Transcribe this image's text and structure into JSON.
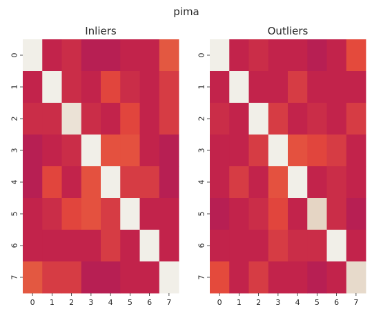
{
  "figure": {
    "suptitle": "pima"
  },
  "palette": [
    "#f1efe8",
    "#e0cab5",
    "#f0c9b0",
    "#e35b42",
    "#e4473b",
    "#d43b45",
    "#c3234a",
    "#b51e54"
  ],
  "chart_data": [
    {
      "type": "heatmap",
      "title": "Inliers",
      "xlabel": "",
      "ylabel": "",
      "x_ticks": [
        "0",
        "1",
        "2",
        "3",
        "4",
        "5",
        "6",
        "7"
      ],
      "y_ticks": [
        "0",
        "1",
        "2",
        "3",
        "4",
        "5",
        "6",
        "7"
      ],
      "colorbar": false,
      "values": [
        [
          1.0,
          0.13,
          0.2,
          0.02,
          0.02,
          0.13,
          0.13,
          0.55
        ],
        [
          0.13,
          1.0,
          0.2,
          0.13,
          0.4,
          0.2,
          0.13,
          0.3
        ],
        [
          0.2,
          0.2,
          0.95,
          0.2,
          0.13,
          0.4,
          0.13,
          0.3
        ],
        [
          0.02,
          0.13,
          0.2,
          1.0,
          0.5,
          0.5,
          0.13,
          0.02
        ],
        [
          0.02,
          0.4,
          0.13,
          0.5,
          1.0,
          0.3,
          0.3,
          0.02
        ],
        [
          0.13,
          0.2,
          0.4,
          0.5,
          0.3,
          1.0,
          0.13,
          0.13
        ],
        [
          0.13,
          0.13,
          0.13,
          0.13,
          0.3,
          0.13,
          1.0,
          0.13
        ],
        [
          0.55,
          0.3,
          0.3,
          0.02,
          0.02,
          0.13,
          0.13,
          1.0
        ]
      ]
    },
    {
      "type": "heatmap",
      "title": "Outliers",
      "xlabel": "",
      "ylabel": "",
      "x_ticks": [
        "0",
        "1",
        "2",
        "3",
        "4",
        "5",
        "6",
        "7"
      ],
      "y_ticks": [
        "0",
        "1",
        "2",
        "3",
        "4",
        "5",
        "6",
        "7"
      ],
      "colorbar": false,
      "values": [
        [
          1.0,
          0.13,
          0.2,
          0.13,
          0.13,
          0.02,
          0.13,
          0.45
        ],
        [
          0.13,
          1.0,
          0.13,
          0.13,
          0.3,
          0.13,
          0.13,
          0.13
        ],
        [
          0.2,
          0.13,
          1.0,
          0.3,
          0.13,
          0.2,
          0.13,
          0.3
        ],
        [
          0.13,
          0.13,
          0.3,
          1.0,
          0.5,
          0.4,
          0.3,
          0.13
        ],
        [
          0.13,
          0.3,
          0.13,
          0.5,
          1.0,
          0.13,
          0.2,
          0.13
        ],
        [
          0.02,
          0.13,
          0.2,
          0.4,
          0.13,
          0.9,
          0.2,
          0.02
        ],
        [
          0.13,
          0.13,
          0.13,
          0.3,
          0.2,
          0.2,
          1.0,
          0.13
        ],
        [
          0.45,
          0.13,
          0.3,
          0.13,
          0.13,
          0.02,
          0.13,
          0.92
        ]
      ]
    }
  ]
}
